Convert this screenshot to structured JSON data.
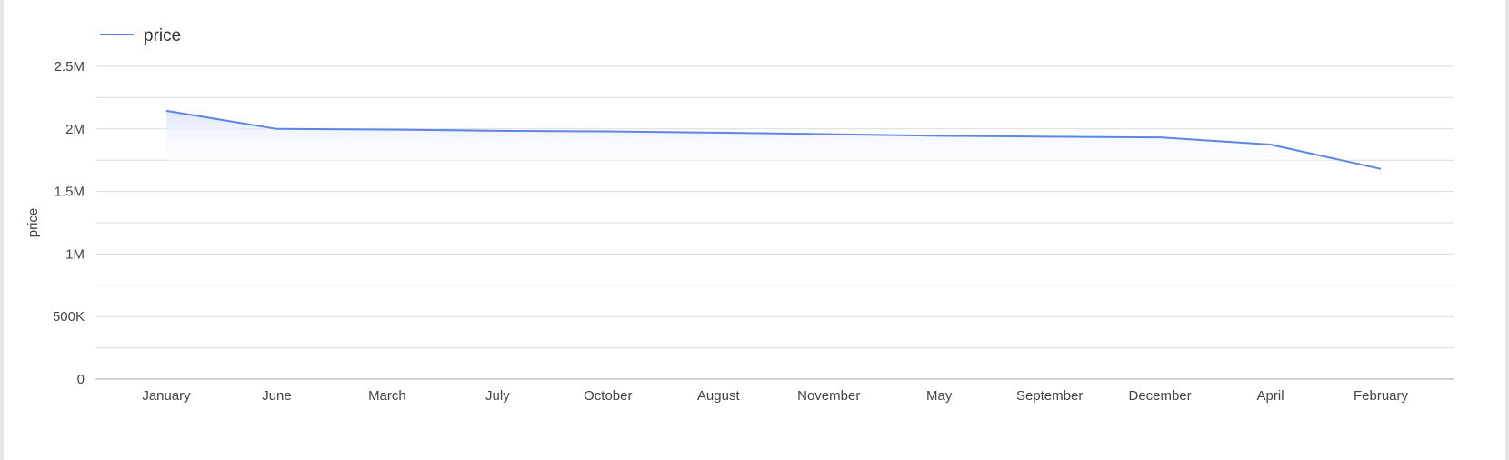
{
  "colors": {
    "series": "#5b86e5",
    "grid": "#dcdcdc",
    "axis": "#b8b8b8",
    "fill_top": "#dfe6fb"
  },
  "legend": {
    "label": "price",
    "icon": "line-swatch-icon"
  },
  "chart_data": {
    "type": "area",
    "ylabel": "price",
    "xlabel": "",
    "title": "",
    "ylim": [
      0,
      2500000
    ],
    "y_ticks": [
      "0",
      "500K",
      "1M",
      "1.5M",
      "2M",
      "2.5M"
    ],
    "y_tick_values": [
      0,
      500000,
      1000000,
      1500000,
      2000000,
      2500000
    ],
    "grid": true,
    "legend_position": "top-left",
    "categories": [
      "January",
      "June",
      "March",
      "July",
      "October",
      "August",
      "November",
      "May",
      "September",
      "December",
      "April",
      "February"
    ],
    "series": [
      {
        "name": "price",
        "values": [
          2145000,
          2000000,
          1995000,
          1985000,
          1980000,
          1970000,
          1958000,
          1945000,
          1938000,
          1932000,
          1875000,
          1680000
        ]
      }
    ]
  }
}
